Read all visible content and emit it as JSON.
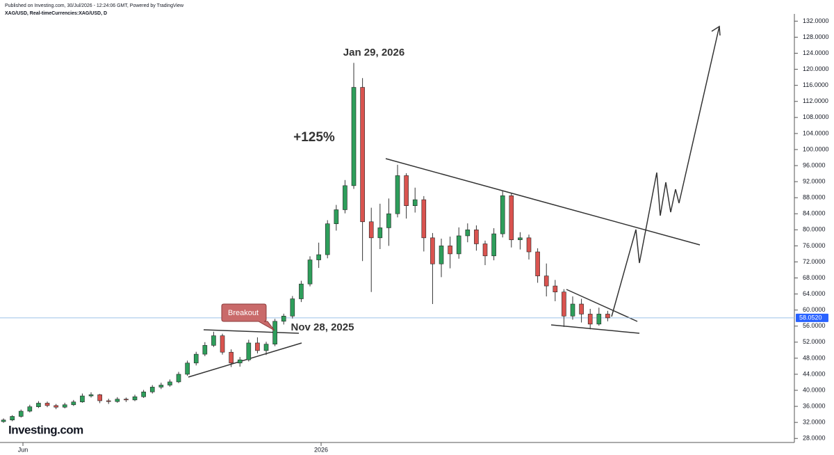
{
  "chart_data": {
    "type": "candlestick",
    "published": "Published on Investing.com, 30/Jul/2026 - 12:24:06 GMT, Powered by TradingView",
    "symbol": "XAG/USD, Real-timeCurrencies:XAG/USD, D",
    "logo": "Investing.com",
    "annotations": {
      "peak": "Jan 29, 2026",
      "gain": "+125%",
      "breakout": "Breakout",
      "breakout_date": "Nov 28, 2025"
    },
    "up_color": "#2e9e5b",
    "down_color": "#d9534f",
    "last_price": {
      "value": 58.052,
      "label": "58.0520"
    },
    "xlim": [
      -0.4,
      90.08
    ],
    "xticks": [
      {
        "value": 2.22,
        "label": "Jun"
      },
      {
        "value": 36.27,
        "label": "2026"
      }
    ],
    "ylim": [
      27,
      133.8
    ],
    "yticks": [
      {
        "value": 28,
        "label": "28.0000"
      },
      {
        "value": 32,
        "label": "32.0000"
      },
      {
        "value": 36,
        "label": "36.0000"
      },
      {
        "value": 40,
        "label": "40.0000"
      },
      {
        "value": 44,
        "label": "44.0000"
      },
      {
        "value": 48,
        "label": "48.0000"
      },
      {
        "value": 52,
        "label": "52.0000"
      },
      {
        "value": 56,
        "label": "56.0000"
      },
      {
        "value": 60,
        "label": "60.0000"
      },
      {
        "value": 64,
        "label": "64.0000"
      },
      {
        "value": 68,
        "label": "68.0000"
      },
      {
        "value": 72,
        "label": "72.0000"
      },
      {
        "value": 76,
        "label": "76.0000"
      },
      {
        "value": 80,
        "label": "80.0000"
      },
      {
        "value": 84,
        "label": "84.0000"
      },
      {
        "value": 88,
        "label": "88.0000"
      },
      {
        "value": 92,
        "label": "92.0000"
      },
      {
        "value": 96,
        "label": "96.0000"
      },
      {
        "value": 100,
        "label": "100.0000"
      },
      {
        "value": 104,
        "label": "104.0000"
      },
      {
        "value": 108,
        "label": "108.0000"
      },
      {
        "value": 112,
        "label": "112.0000"
      },
      {
        "value": 116,
        "label": "116.0000"
      },
      {
        "value": 120,
        "label": "120.0000"
      },
      {
        "value": 124,
        "label": "124.0000"
      },
      {
        "value": 128,
        "label": "128.0000"
      },
      {
        "value": 132,
        "label": "132.0000"
      }
    ],
    "ohlc": [
      [
        32.2,
        33.0,
        31.9,
        32.6
      ],
      [
        32.6,
        33.8,
        32.3,
        33.5
      ],
      [
        33.5,
        35.2,
        33.2,
        34.8
      ],
      [
        34.8,
        36.4,
        34.5,
        35.9
      ],
      [
        35.9,
        37.3,
        35.6,
        36.8
      ],
      [
        36.8,
        37.2,
        35.8,
        36.2
      ],
      [
        36.2,
        36.6,
        35.3,
        35.8
      ],
      [
        35.8,
        36.9,
        35.5,
        36.4
      ],
      [
        36.4,
        37.6,
        36.1,
        37.1
      ],
      [
        37.1,
        39.2,
        36.9,
        38.6
      ],
      [
        38.6,
        39.5,
        38.2,
        38.9
      ],
      [
        38.9,
        39.1,
        36.8,
        37.4
      ],
      [
        37.4,
        37.9,
        36.6,
        37.2
      ],
      [
        37.2,
        38.3,
        36.9,
        37.8
      ],
      [
        37.8,
        38.2,
        37.1,
        37.6
      ],
      [
        37.6,
        38.9,
        37.3,
        38.4
      ],
      [
        38.4,
        40.1,
        38.1,
        39.6
      ],
      [
        39.6,
        41.3,
        39.2,
        40.8
      ],
      [
        40.8,
        41.9,
        40.3,
        41.3
      ],
      [
        41.3,
        42.7,
        40.9,
        42.1
      ],
      [
        42.1,
        44.6,
        41.8,
        44.0
      ],
      [
        44.0,
        47.4,
        43.6,
        46.8
      ],
      [
        46.8,
        49.6,
        46.2,
        49.0
      ],
      [
        49.0,
        52.0,
        48.5,
        51.2
      ],
      [
        51.2,
        54.6,
        50.8,
        53.6
      ],
      [
        53.6,
        54.1,
        48.9,
        49.5
      ],
      [
        49.5,
        50.2,
        45.8,
        46.8
      ],
      [
        46.8,
        48.3,
        45.9,
        47.6
      ],
      [
        47.6,
        52.6,
        47.2,
        51.8
      ],
      [
        51.8,
        53.2,
        49.2,
        49.9
      ],
      [
        49.9,
        52.1,
        48.8,
        51.5
      ],
      [
        51.5,
        57.8,
        51.0,
        57.2
      ],
      [
        57.2,
        59.1,
        56.4,
        58.5
      ],
      [
        58.5,
        63.5,
        57.9,
        62.8
      ],
      [
        62.8,
        67.3,
        62.0,
        66.5
      ],
      [
        66.5,
        73.4,
        65.9,
        72.5
      ],
      [
        72.5,
        76.8,
        70.5,
        73.8
      ],
      [
        73.8,
        82.4,
        72.9,
        81.5
      ],
      [
        81.5,
        86.2,
        79.8,
        85.0
      ],
      [
        85.0,
        92.4,
        84.1,
        91.0
      ],
      [
        91.0,
        121.6,
        90.2,
        115.5
      ],
      [
        115.5,
        117.8,
        72.2,
        82.0
      ],
      [
        82.0,
        85.5,
        64.5,
        78.0
      ],
      [
        78.0,
        86.5,
        75.2,
        80.5
      ],
      [
        80.5,
        87.8,
        76.0,
        84.0
      ],
      [
        84.0,
        96.2,
        83.1,
        93.5
      ],
      [
        93.5,
        94.1,
        82.8,
        86.0
      ],
      [
        86.0,
        90.5,
        84.3,
        87.5
      ],
      [
        87.5,
        88.4,
        74.6,
        78.0
      ],
      [
        78.0,
        79.2,
        61.5,
        71.5
      ],
      [
        71.5,
        77.8,
        68.2,
        76.0
      ],
      [
        76.0,
        78.3,
        70.4,
        74.0
      ],
      [
        74.0,
        80.6,
        72.8,
        78.5
      ],
      [
        78.5,
        81.6,
        76.9,
        80.0
      ],
      [
        80.0,
        81.1,
        74.8,
        76.5
      ],
      [
        76.5,
        77.3,
        71.2,
        73.5
      ],
      [
        73.5,
        80.4,
        72.4,
        79.0
      ],
      [
        79.0,
        89.6,
        78.1,
        88.5
      ],
      [
        88.5,
        89.2,
        75.6,
        77.5
      ],
      [
        77.5,
        79.4,
        75.1,
        78.0
      ],
      [
        78.0,
        78.8,
        72.6,
        74.5
      ],
      [
        74.5,
        75.4,
        66.8,
        68.5
      ],
      [
        68.5,
        71.6,
        63.4,
        66.0
      ],
      [
        66.0,
        67.5,
        62.2,
        64.5
      ],
      [
        64.5,
        65.2,
        55.8,
        58.5
      ],
      [
        58.5,
        63.4,
        57.6,
        61.5
      ],
      [
        61.5,
        62.8,
        56.9,
        59.0
      ],
      [
        59.0,
        60.3,
        55.2,
        56.5
      ],
      [
        56.5,
        60.6,
        56.1,
        59.0
      ],
      [
        59.0,
        59.8,
        57.2,
        58.05
      ]
    ]
  }
}
